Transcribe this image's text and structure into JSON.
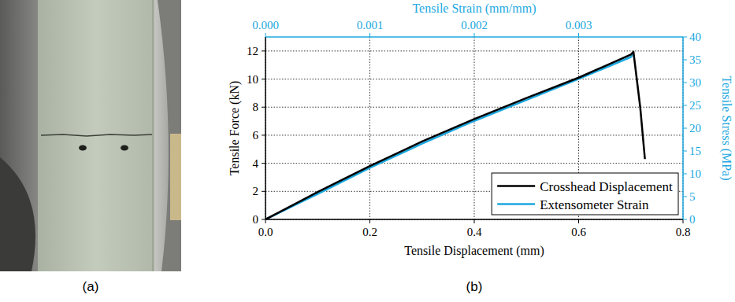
{
  "image_panel": {
    "label": "(a)"
  },
  "chart_data": {
    "type": "line",
    "panel_label": "(b)",
    "x_label": "Tensile Displacement (mm)",
    "y_label": "Tensile Force (kN)",
    "x2_label": "Tensile Strain (mm/mm)",
    "y2_label": "Tensile Stress (MPa)",
    "xlim": [
      0,
      0.8
    ],
    "xticks": [
      {
        "value": 0,
        "label": "0.0"
      },
      0.2,
      0.4,
      0.6,
      0.8
    ],
    "ylim": [
      0,
      13
    ],
    "yticks": [
      0,
      2,
      4,
      6,
      8,
      10,
      12
    ],
    "x2lim": [
      0,
      0.004
    ],
    "x2ticks": [
      {
        "value": 0,
        "label": "0.000"
      },
      0.001,
      0.002,
      0.003
    ],
    "y2lim": [
      0,
      40
    ],
    "y2ticks": [
      0,
      5,
      10,
      15,
      20,
      25,
      30,
      35,
      40
    ],
    "grid": true,
    "legend": "lower right",
    "series": [
      {
        "name": "Crosshead Displacement",
        "color": "#000000",
        "x": [
          0,
          0.1,
          0.2,
          0.3,
          0.4,
          0.5,
          0.6,
          0.7,
          0.705,
          0.718,
          0.727
        ],
        "values": [
          0,
          1.95,
          3.8,
          5.55,
          7.15,
          8.65,
          10.1,
          11.75,
          11.95,
          8.0,
          4.3
        ]
      },
      {
        "name": "Extensometer Strain",
        "color": "#1ba8e0",
        "axis": "y2",
        "x": [
          0,
          0.0005,
          0.001,
          0.0015,
          0.002,
          0.0025,
          0.003,
          0.0035,
          0.00353
        ],
        "values": [
          0,
          5.6,
          11.3,
          16.6,
          21.6,
          26.2,
          30.8,
          35.6,
          36.4
        ]
      }
    ]
  }
}
